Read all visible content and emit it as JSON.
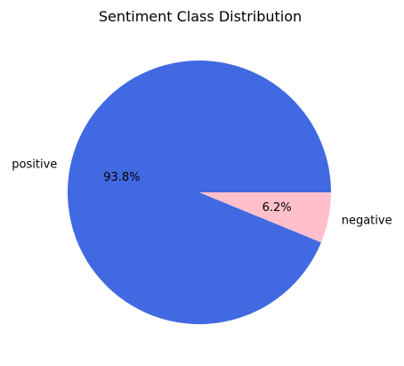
{
  "chart_data": {
    "type": "pie",
    "title": "Sentiment Class Distribution",
    "categories": [
      "positive",
      "negative"
    ],
    "values": [
      93.8,
      6.2
    ],
    "value_labels": [
      "93.8%",
      "6.2%"
    ],
    "colors": [
      "#4169e1",
      "#ffc0cb"
    ],
    "legend": "none"
  }
}
